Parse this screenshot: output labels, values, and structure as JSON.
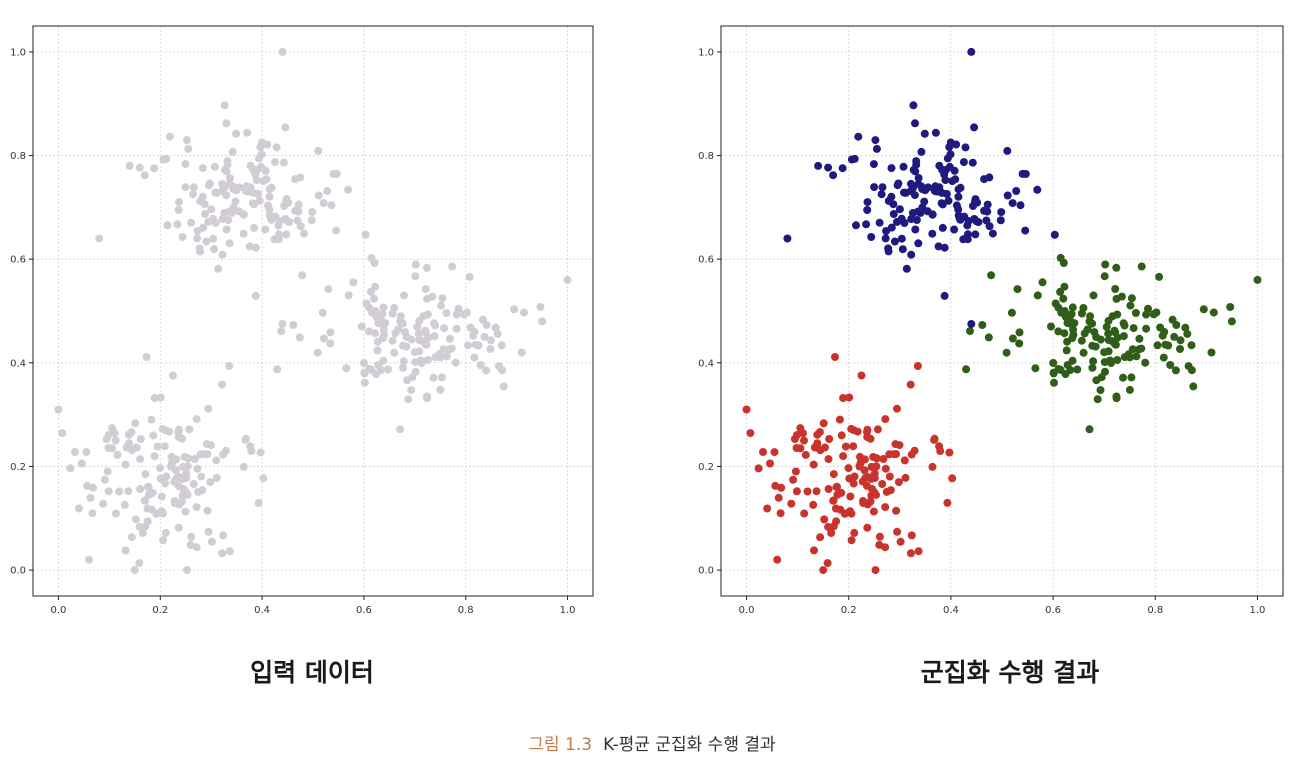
{
  "figure_caption": {
    "label": "그림 1.3",
    "text": "K-평균 군집화 수행 결과"
  },
  "colors": {
    "input": "#d2ccd4",
    "c0": "#1f1a7e",
    "c1": "#2e5e18",
    "c2": "#c8332c"
  },
  "chart_data": [
    {
      "type": "scatter",
      "title": "입력 데이터",
      "xlabel": "",
      "ylabel": "",
      "xlim": [
        -0.05,
        1.05
      ],
      "ylim": [
        -0.05,
        1.05
      ],
      "xticks": [
        "0.0",
        "0.2",
        "0.4",
        "0.6",
        "0.8",
        "1.0"
      ],
      "yticks": [
        "0.0",
        "0.2",
        "0.4",
        "0.6",
        "0.8",
        "1.0"
      ],
      "grid": true,
      "series": [
        {
          "color": "#d2ccd4",
          "cluster": "all",
          "n": 450
        }
      ]
    },
    {
      "type": "scatter",
      "title": "군집화 수행 결과",
      "xlabel": "",
      "ylabel": "",
      "xlim": [
        -0.05,
        1.05
      ],
      "ylim": [
        -0.05,
        1.05
      ],
      "xticks": [
        "0.0",
        "0.2",
        "0.4",
        "0.6",
        "0.8",
        "1.0"
      ],
      "yticks": [
        "0.0",
        "0.2",
        "0.4",
        "0.6",
        "0.8",
        "1.0"
      ],
      "grid": true,
      "clusters": [
        {
          "color": "#1f1a7e",
          "center": [
            0.37,
            0.72
          ],
          "spread": [
            0.085,
            0.065
          ],
          "n": 150
        },
        {
          "color": "#2e5e18",
          "center": [
            0.7,
            0.45
          ],
          "spread": [
            0.09,
            0.065
          ],
          "n": 150
        },
        {
          "color": "#c8332c",
          "center": [
            0.21,
            0.19
          ],
          "spread": [
            0.085,
            0.075
          ],
          "n": 150
        }
      ],
      "notable_points": [
        [
          0.44,
          1.0
        ],
        [
          0.08,
          0.64
        ],
        [
          0.14,
          0.78
        ],
        [
          0.0,
          0.31
        ],
        [
          1.0,
          0.56
        ],
        [
          0.15,
          0.0
        ],
        [
          0.06,
          0.02
        ],
        [
          0.44,
          0.475
        ],
        [
          0.95,
          0.48
        ],
        [
          0.91,
          0.42
        ]
      ]
    }
  ]
}
